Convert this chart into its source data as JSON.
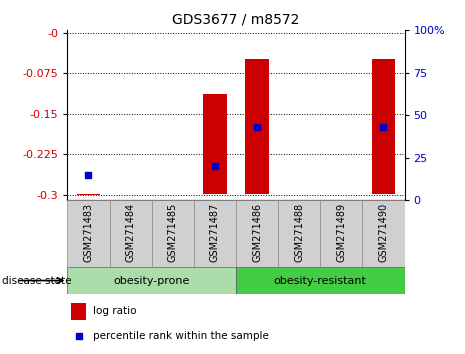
{
  "title": "GDS3677 / m8572",
  "samples": [
    "GSM271483",
    "GSM271484",
    "GSM271485",
    "GSM271487",
    "GSM271486",
    "GSM271488",
    "GSM271489",
    "GSM271490"
  ],
  "bar_bottoms": [
    -0.298,
    null,
    null,
    -0.298,
    -0.298,
    null,
    null,
    -0.298
  ],
  "bar_tops": [
    -0.298,
    null,
    null,
    -0.113,
    -0.048,
    null,
    null,
    -0.048
  ],
  "percentile_rank": [
    15.0,
    null,
    null,
    20.0,
    43.0,
    null,
    null,
    43.0
  ],
  "ylim_left": [
    -0.31,
    0.005
  ],
  "ylim_right": [
    0,
    100
  ],
  "yticks_left": [
    0,
    -0.075,
    -0.15,
    -0.225,
    -0.3
  ],
  "yticks_right": [
    0,
    25,
    50,
    75,
    100
  ],
  "left_tick_labels": [
    "-0",
    "-0.075",
    "-0.15",
    "-0.225",
    "-0.3"
  ],
  "right_tick_labels": [
    "0",
    "25",
    "50",
    "75",
    "100%"
  ],
  "bar_color": "#cc0000",
  "dot_color": "#0000cc",
  "prone_color": "#aaddaa",
  "resistant_color": "#44cc44",
  "prone_label": "obesity-prone",
  "resistant_label": "obesity-resistant",
  "disease_state_label": "disease state",
  "legend_log_ratio": "log ratio",
  "legend_percentile": "percentile rank within the sample",
  "bar_width": 0.55
}
